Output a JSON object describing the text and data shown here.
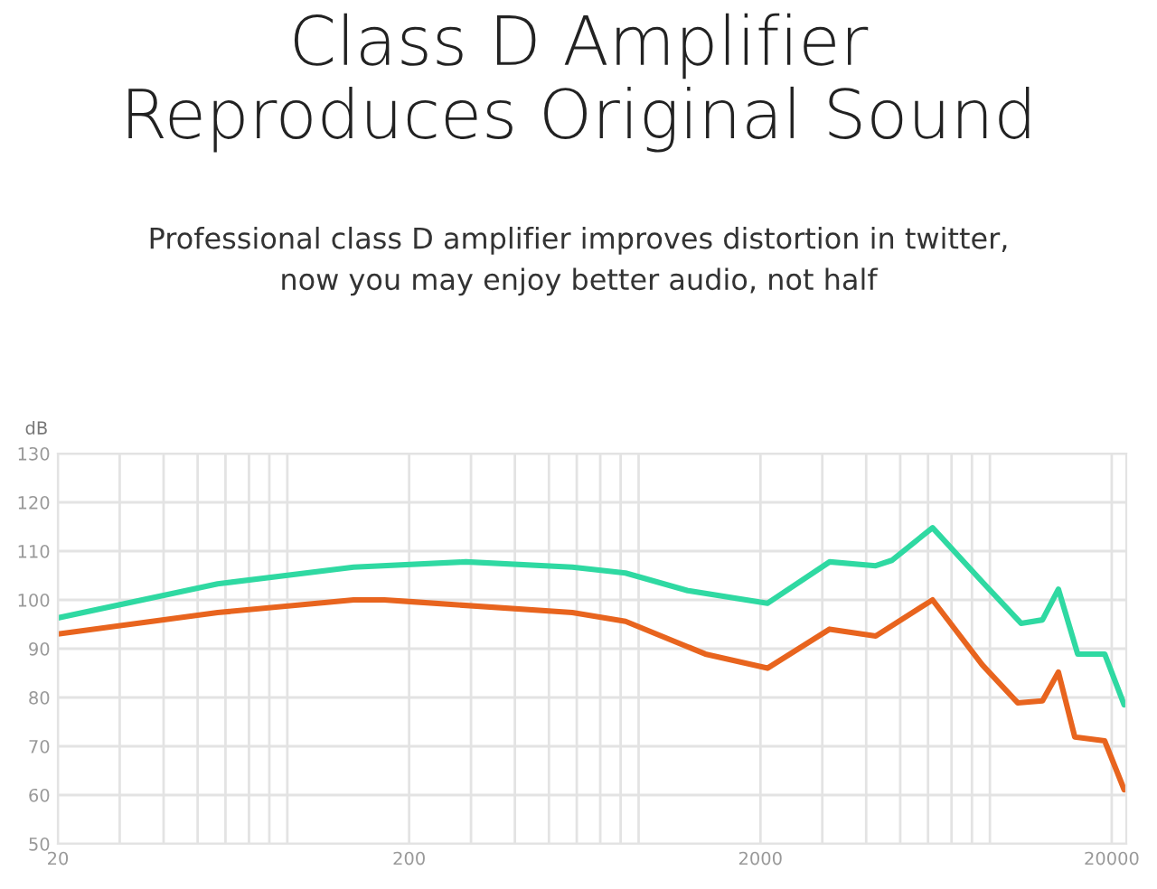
{
  "chart_data": {
    "type": "line",
    "title": "Class D Amplifier\nReproduces Original Sound",
    "subtitle": "Professional class D amplifier improves distortion in twitter,\nnow you may enjoy better audio, not half",
    "ylabel": "dB",
    "log": "x",
    "series": [
      {
        "color": "#2fd9a2",
        "x": [
          20,
          57,
          139,
          290,
          583,
          826,
          1242,
          2094,
          3148,
          4257,
          4730,
          6180,
          8560,
          11040,
          12700,
          14100,
          16000,
          19100,
          21700
        ],
        "values": [
          96.3,
          103.3,
          106.7,
          107.8,
          106.7,
          105.5,
          101.9,
          99.3,
          107.8,
          107,
          108.1,
          114.8,
          103.7,
          95.2,
          95.9,
          102.2,
          88.9,
          88.9,
          78.5
        ]
      },
      {
        "color": "#e8641e",
        "x": [
          20,
          57,
          139,
          170,
          205,
          583,
          826,
          1394,
          2094,
          3148,
          4257,
          6180,
          8560,
          10800,
          12700,
          14100,
          15700,
          19100,
          21700
        ],
        "values": [
          93,
          97.4,
          100,
          100,
          99.6,
          97.4,
          95.6,
          88.9,
          86,
          94,
          92.6,
          100,
          86.7,
          78.9,
          79.3,
          85.2,
          71.9,
          71.1,
          61.1
        ]
      }
    ],
    "xlim": [
      20,
      22000
    ],
    "xticks": [
      20,
      {
        "value": 30,
        "label": null
      },
      {
        "value": 40,
        "label": null
      },
      {
        "value": 50,
        "label": null
      },
      {
        "value": 60,
        "label": null
      },
      {
        "value": 70,
        "label": null
      },
      {
        "value": 80,
        "label": null
      },
      {
        "value": 90,
        "label": null
      },
      200,
      {
        "value": 300,
        "label": null
      },
      {
        "value": 400,
        "label": null
      },
      {
        "value": 500,
        "label": null
      },
      {
        "value": 600,
        "label": null
      },
      {
        "value": 700,
        "label": null
      },
      {
        "value": 800,
        "label": null
      },
      {
        "value": 900,
        "label": null
      },
      2000,
      {
        "value": 3000,
        "label": null
      },
      {
        "value": 4000,
        "label": null
      },
      {
        "value": 5000,
        "label": null
      },
      {
        "value": 6000,
        "label": null
      },
      {
        "value": 7000,
        "label": null
      },
      {
        "value": 8000,
        "label": null
      },
      {
        "value": 9000,
        "label": null
      },
      20000
    ],
    "ylim": [
      50,
      130
    ],
    "yticks": [
      50,
      60,
      70,
      80,
      90,
      100,
      110,
      120,
      130
    ],
    "grid": true,
    "line_style": "solid",
    "marker": "none"
  }
}
